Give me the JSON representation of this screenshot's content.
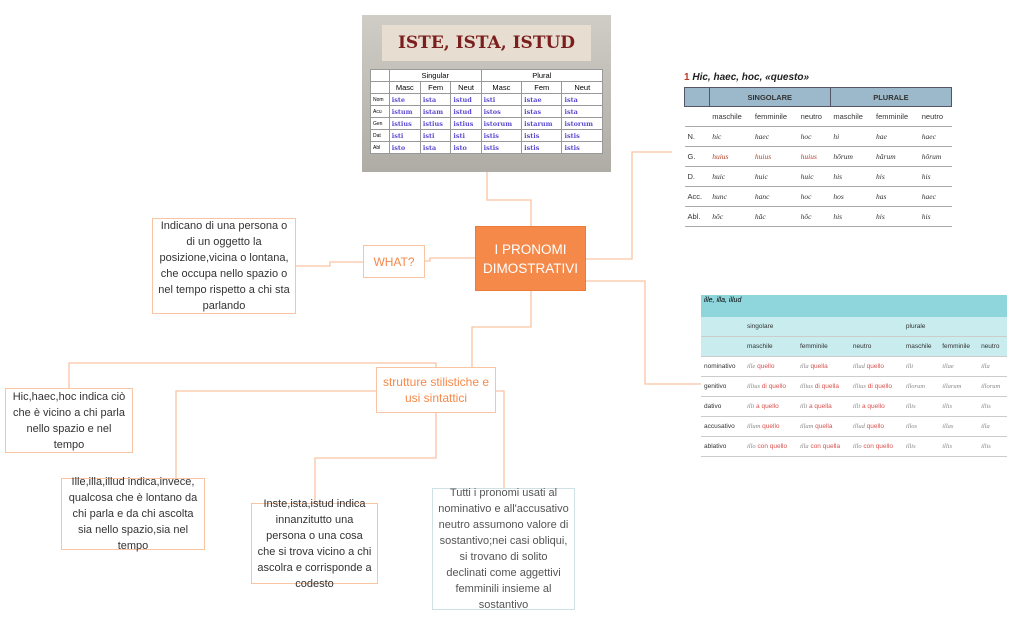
{
  "center": {
    "title": "I PRONOMI DIMOSTRATIVI"
  },
  "what": {
    "label": "WHAT?",
    "description": "Indicano di una persona o di un oggetto la posizione,vicina o lontana, che occupa nello spazio o nel tempo rispetto a chi sta parlando"
  },
  "strutture": {
    "label": "strutture stilistiche e usi sintattici",
    "hic": "Hic,haec,hoc indica ciò che è vicino a chi parla nello spazio e nel tempo",
    "ille": "Ille,illa,illud indica,invece, qualcosa che è lontano da chi parla e da chi ascolta sia nello spazio,sia nel tempo",
    "iste": "Inste,ista,istud indica innanzitutto una persona o una cosa che si trova vicino a chi ascolra e corrisponde a codesto",
    "tutti": "Tutti i pronomi usati al nominativo e all'accusativo neutro assumono valore di sostantivo;nei casi obliqui, si trovano di solito declinati come aggettivi femminili insieme al sostantivo"
  },
  "colors": {
    "accent": "#f5894a",
    "connector": "#f9c4a2"
  },
  "image_iste": {
    "title": "ISTE, ISTA, ISTUD",
    "groups": [
      "Singular",
      "Plural"
    ],
    "columns": [
      "Masc",
      "Fem",
      "Neut",
      "Masc",
      "Fem",
      "Neut"
    ],
    "rows": [
      {
        "case": "Nom",
        "cells": [
          "iste",
          "ista",
          "istud",
          "isti",
          "istae",
          "ista"
        ]
      },
      {
        "case": "Acu",
        "cells": [
          "istum",
          "istam",
          "istud",
          "istos",
          "istas",
          "ista"
        ]
      },
      {
        "case": "Gen",
        "cells": [
          "istius",
          "istius",
          "istius",
          "istorum",
          "istarum",
          "istorum"
        ]
      },
      {
        "case": "Dat",
        "cells": [
          "isti",
          "isti",
          "isti",
          "istis",
          "istis",
          "istis"
        ]
      },
      {
        "case": "Abl",
        "cells": [
          "isto",
          "ista",
          "isto",
          "istis",
          "istis",
          "istis"
        ]
      }
    ]
  },
  "image_hic": {
    "number": "1",
    "title": "Hic, haec, hoc, «questo»",
    "groups": [
      "SINGOLARE",
      "PLURALE"
    ],
    "columns": [
      "maschile",
      "femminile",
      "neutro",
      "maschile",
      "femminile",
      "neutro"
    ],
    "rows": [
      {
        "case": "N.",
        "cells": [
          "hic",
          "haec",
          "hoc",
          "hi",
          "hae",
          "haec"
        ]
      },
      {
        "case": "G.",
        "cells": [
          "huius",
          "huius",
          "huius",
          "hōrum",
          "hārum",
          "hōrum"
        ]
      },
      {
        "case": "D.",
        "cells": [
          "huic",
          "huic",
          "huic",
          "his",
          "his",
          "his"
        ]
      },
      {
        "case": "Acc.",
        "cells": [
          "hunc",
          "hanc",
          "hoc",
          "hos",
          "has",
          "haec"
        ]
      },
      {
        "case": "Abl.",
        "cells": [
          "hōc",
          "hāc",
          "hōc",
          "his",
          "his",
          "his"
        ]
      }
    ]
  },
  "image_ille": {
    "title": "ille, illa, illud",
    "groups": [
      "singolare",
      "plurale"
    ],
    "columns": [
      "maschile",
      "femminile",
      "neutro",
      "maschile",
      "femminile",
      "neutro"
    ],
    "rows": [
      {
        "case": "nominativo",
        "cells": [
          "ille",
          "illa",
          "illud",
          "illi",
          "illae",
          "illa"
        ],
        "glosses": [
          "quello",
          "quella",
          "quello"
        ]
      },
      {
        "case": "genitivo",
        "cells": [
          "illius",
          "illius",
          "illius",
          "illorum",
          "illarum",
          "illorum"
        ],
        "glosses": [
          "di quello",
          "di quella",
          "di quello"
        ]
      },
      {
        "case": "dativo",
        "cells": [
          "illi",
          "illi",
          "illi",
          "illis",
          "illis",
          "illis"
        ],
        "glosses": [
          "a quello",
          "a quella",
          "a quello"
        ]
      },
      {
        "case": "accusativo",
        "cells": [
          "illum",
          "illam",
          "illud",
          "illos",
          "illas",
          "illa"
        ],
        "glosses": [
          "quello",
          "quella",
          "quello"
        ]
      },
      {
        "case": "ablativo",
        "cells": [
          "illo",
          "illa",
          "illo",
          "illis",
          "illis",
          "illis"
        ],
        "glosses": [
          "con quello",
          "con quella",
          "con quello"
        ]
      }
    ]
  }
}
